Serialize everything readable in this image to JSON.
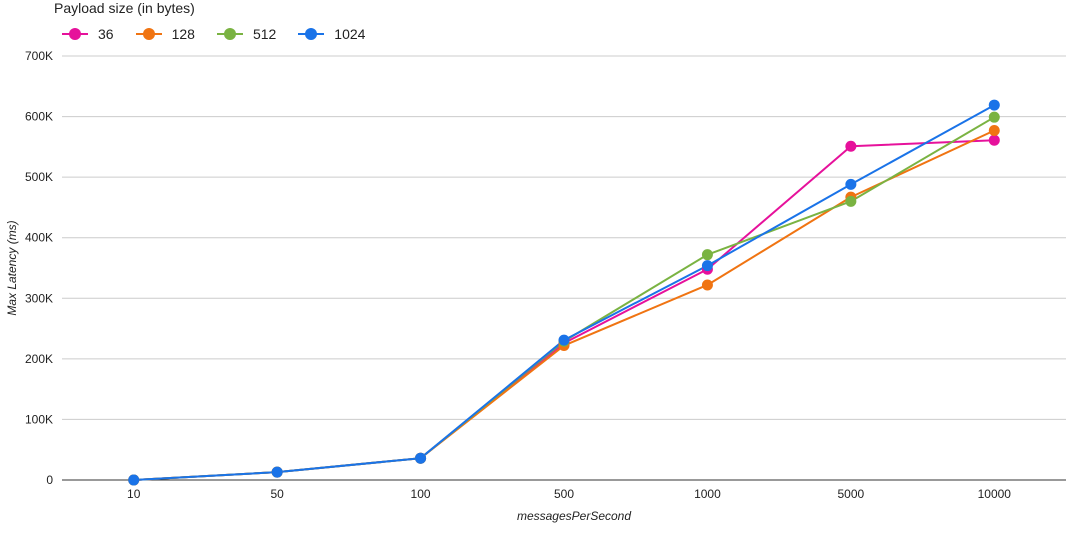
{
  "chart_data": {
    "type": "line",
    "legend_title": "Payload size (in bytes)",
    "legend_position": "top-left",
    "xlabel": "messagesPerSecond",
    "ylabel": "Max Latency (ms)",
    "categories": [
      "10",
      "50",
      "100",
      "500",
      "1000",
      "5000",
      "10000"
    ],
    "y_ticks": [
      "0",
      "100K",
      "200K",
      "300K",
      "400K",
      "500K",
      "600K",
      "700K"
    ],
    "ylim": [
      0,
      700000
    ],
    "grid": true,
    "series": [
      {
        "name": "36",
        "color": "#e6119b",
        "values": [
          0,
          13000,
          36000,
          226000,
          348000,
          551000,
          561000
        ]
      },
      {
        "name": "128",
        "color": "#f07412",
        "values": [
          0,
          13000,
          36000,
          222000,
          322000,
          467000,
          577000
        ]
      },
      {
        "name": "512",
        "color": "#7ab342",
        "values": [
          0,
          13000,
          36000,
          229000,
          372000,
          460000,
          599000
        ]
      },
      {
        "name": "1024",
        "color": "#1a73e8",
        "values": [
          0,
          13000,
          36000,
          231000,
          354000,
          488000,
          619000
        ]
      }
    ]
  }
}
